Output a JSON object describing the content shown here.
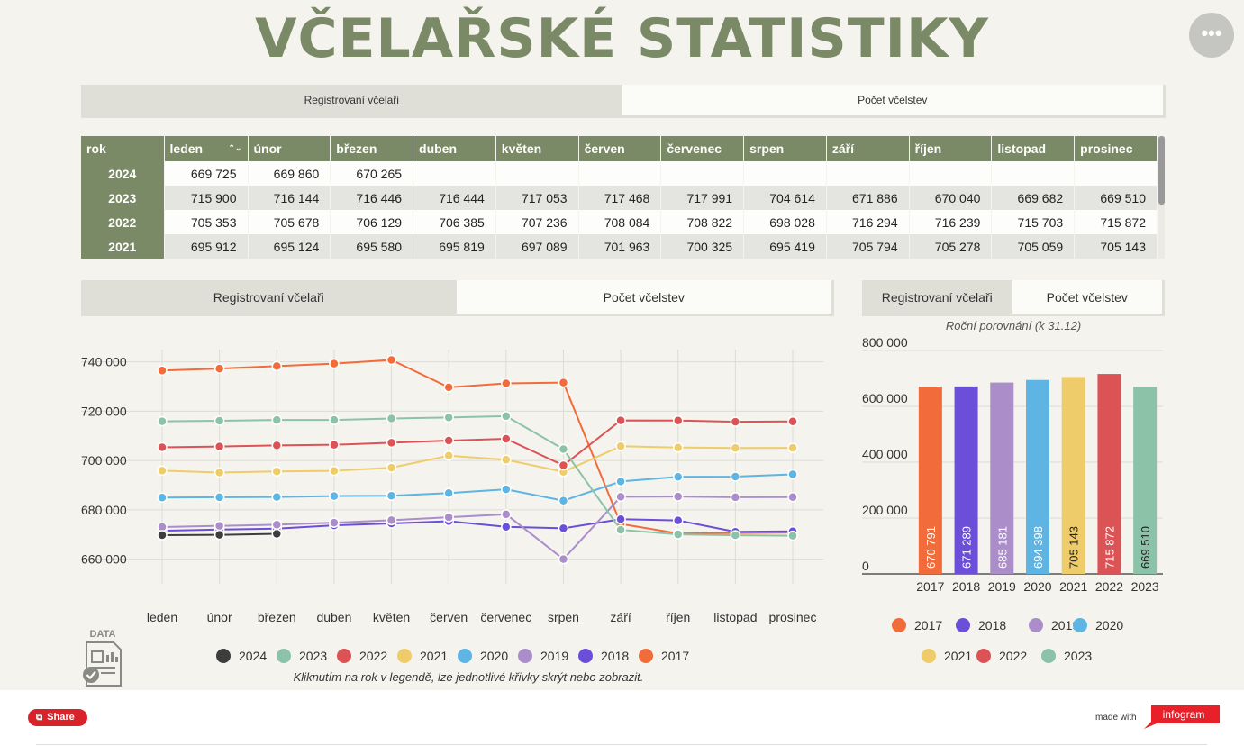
{
  "title": "VČELAŘSKÉ STATISTIKY",
  "menu_label": "•••",
  "top_tabs": [
    "Registrovaní včelaři",
    "Počet včelstev"
  ],
  "table": {
    "headers": [
      "rok",
      "leden",
      "únor",
      "březen",
      "duben",
      "květen",
      "červen",
      "červenec",
      "srpen",
      "září",
      "říjen",
      "listopad",
      "prosinec"
    ],
    "rows": [
      [
        "2024",
        "669 725",
        "669 860",
        "670 265",
        "",
        "",
        "",
        "",
        "",
        "",
        "",
        "",
        ""
      ],
      [
        "2023",
        "715 900",
        "716 144",
        "716 446",
        "716 444",
        "717 053",
        "717 468",
        "717 991",
        "704 614",
        "671 886",
        "670 040",
        "669 682",
        "669 510"
      ],
      [
        "2022",
        "705 353",
        "705 678",
        "706 129",
        "706 385",
        "707 236",
        "708 084",
        "708 822",
        "698 028",
        "716 294",
        "716 239",
        "715 703",
        "715 872"
      ],
      [
        "2021",
        "695 912",
        "695 124",
        "695 580",
        "695 819",
        "697 089",
        "701 963",
        "700 325",
        "695 419",
        "705 794",
        "705 278",
        "705 059",
        "705 143"
      ]
    ]
  },
  "line_tabs": [
    "Registrovaní včelaři",
    "Počet včelstev"
  ],
  "bar_tabs": [
    "Registrovaní včelaři",
    "Počet včelstev"
  ],
  "data_icon_label": "DATA",
  "line_hint": "Kliknutím na rok v legendě, lze jednotlivé křivky skrýt nebo zobrazit.",
  "bar_subtitle": "Roční porovnání (k 31.12)",
  "footer": {
    "share": "Share",
    "made_with": "made with",
    "brand": "infogram"
  },
  "chart_data": [
    {
      "type": "line",
      "categories": [
        "leden",
        "únor",
        "březen",
        "duben",
        "květen",
        "červen",
        "červenec",
        "srpen",
        "září",
        "říjen",
        "listopad",
        "prosinec"
      ],
      "ylim": [
        650000,
        745000
      ],
      "yticks": [
        660000,
        680000,
        700000,
        720000,
        740000
      ],
      "ytick_labels": [
        "660 000",
        "680 000",
        "700 000",
        "720 000",
        "740 000"
      ],
      "grid": true,
      "legend_position": "bottom",
      "series": [
        {
          "name": "2024",
          "color": "#3d3d3d",
          "values": [
            669725,
            669860,
            670265,
            null,
            null,
            null,
            null,
            null,
            null,
            null,
            null,
            null
          ]
        },
        {
          "name": "2023",
          "color": "#8cc3a8",
          "values": [
            715900,
            716144,
            716446,
            716444,
            717053,
            717468,
            717991,
            704614,
            671886,
            670040,
            669682,
            669510
          ]
        },
        {
          "name": "2022",
          "color": "#dc5356",
          "values": [
            705353,
            705678,
            706129,
            706385,
            707236,
            708084,
            708822,
            698028,
            716294,
            716239,
            715703,
            715872
          ]
        },
        {
          "name": "2021",
          "color": "#efcc6a",
          "values": [
            695912,
            695124,
            695580,
            695819,
            697089,
            701963,
            700325,
            695419,
            705794,
            705278,
            705059,
            705143
          ]
        },
        {
          "name": "2020",
          "color": "#5eb4e2",
          "values": [
            685000,
            685100,
            685200,
            685600,
            685700,
            686800,
            688300,
            683700,
            691500,
            693400,
            693500,
            694398
          ]
        },
        {
          "name": "2019",
          "color": "#ab8ec9",
          "values": [
            673000,
            673500,
            674000,
            674800,
            675800,
            677000,
            678200,
            660000,
            685300,
            685400,
            685100,
            685181
          ]
        },
        {
          "name": "2018",
          "color": "#6b4fd8",
          "values": [
            671500,
            672000,
            672400,
            673700,
            674500,
            675400,
            673100,
            672500,
            676200,
            675700,
            671100,
            671289
          ]
        },
        {
          "name": "2017",
          "color": "#f26b3a",
          "values": [
            736500,
            737300,
            738300,
            739300,
            740800,
            729700,
            731300,
            731600,
            674300,
            670400,
            670600,
            670791
          ]
        }
      ]
    },
    {
      "type": "bar",
      "title": "Roční porovnání (k 31.12)",
      "categories": [
        "2017",
        "2018",
        "2019",
        "2020",
        "2021",
        "2022",
        "2023"
      ],
      "values": [
        670791,
        671289,
        685181,
        694398,
        705143,
        715872,
        669510
      ],
      "value_labels": [
        "670 791",
        "671 289",
        "685 181",
        "694 398",
        "705 143",
        "715 872",
        "669 510"
      ],
      "colors": [
        "#f26b3a",
        "#6b4fd8",
        "#ab8ec9",
        "#5eb4e2",
        "#efcc6a",
        "#dc5356",
        "#8cc3a8"
      ],
      "ylim": [
        0,
        800000
      ],
      "yticks": [
        0,
        200000,
        400000,
        600000,
        800000
      ],
      "ytick_labels": [
        "0",
        "200 000",
        "400 000",
        "600 000",
        "800 000"
      ],
      "grid": true,
      "legend_position": "bottom"
    }
  ]
}
